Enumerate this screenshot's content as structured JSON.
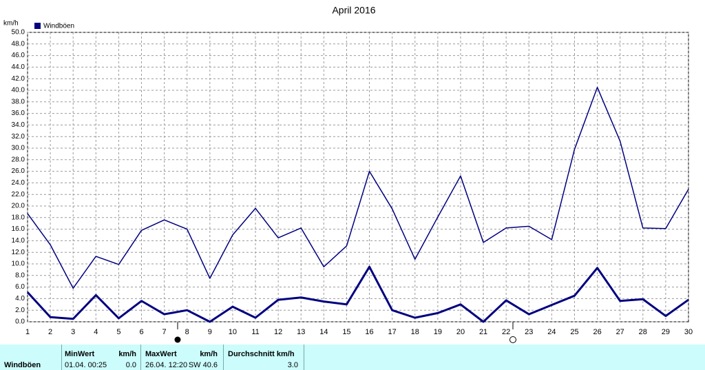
{
  "chart_data": {
    "type": "line",
    "title": "April 2016",
    "y_label": "km/h",
    "x": [
      1,
      2,
      3,
      4,
      5,
      6,
      7,
      8,
      9,
      10,
      11,
      12,
      13,
      14,
      15,
      16,
      17,
      18,
      19,
      20,
      21,
      22,
      23,
      24,
      25,
      26,
      27,
      28,
      29,
      30
    ],
    "xlim": [
      1,
      30
    ],
    "xticks": [
      1,
      2,
      3,
      4,
      5,
      6,
      7,
      8,
      9,
      10,
      11,
      12,
      13,
      14,
      15,
      16,
      17,
      18,
      19,
      20,
      21,
      22,
      23,
      24,
      25,
      26,
      27,
      28,
      29,
      30
    ],
    "ylim": [
      0,
      50
    ],
    "yticks": [
      {
        "value": 0,
        "label": "0.0"
      },
      {
        "value": 2,
        "label": "2.0"
      },
      {
        "value": 4,
        "label": "4.0"
      },
      {
        "value": 6,
        "label": "6.0"
      },
      {
        "value": 8,
        "label": "8.0"
      },
      {
        "value": 10,
        "label": "10.0"
      },
      {
        "value": 12,
        "label": "12.0"
      },
      {
        "value": 14,
        "label": "14.0"
      },
      {
        "value": 16,
        "label": "16.0"
      },
      {
        "value": 18,
        "label": "18.0"
      },
      {
        "value": 20,
        "label": "20.0"
      },
      {
        "value": 22,
        "label": "22.0"
      },
      {
        "value": 24,
        "label": "24.0"
      },
      {
        "value": 26,
        "label": "26.0"
      },
      {
        "value": 28,
        "label": "28.0"
      },
      {
        "value": 30,
        "label": "30.0"
      },
      {
        "value": 32,
        "label": "32.0"
      },
      {
        "value": 34,
        "label": "34.0"
      },
      {
        "value": 36,
        "label": "36.0"
      },
      {
        "value": 38,
        "label": "38.0"
      },
      {
        "value": 40,
        "label": "40.0"
      },
      {
        "value": 42,
        "label": "42.0"
      },
      {
        "value": 44,
        "label": "44.0"
      },
      {
        "value": 46,
        "label": "46.0"
      },
      {
        "value": 48,
        "label": "48.0"
      },
      {
        "value": 50,
        "label": "50.0"
      }
    ],
    "grid": true,
    "series": [
      {
        "name": "Windböen",
        "color": "#000080",
        "width": 1.5,
        "values": [
          18.7,
          13.3,
          5.8,
          11.3,
          9.9,
          15.8,
          17.6,
          16.0,
          7.5,
          15.0,
          19.6,
          14.5,
          16.2,
          9.5,
          13.1,
          26.0,
          19.5,
          10.8,
          18.1,
          25.2,
          13.7,
          16.2,
          16.5,
          14.2,
          29.8,
          40.5,
          31.2,
          16.2,
          16.1,
          22.9
        ]
      },
      {
        "color": "#000080",
        "width": 3,
        "values": [
          5.1,
          0.8,
          0.5,
          4.6,
          0.6,
          3.6,
          1.3,
          2.0,
          0.0,
          2.6,
          0.7,
          3.8,
          4.2,
          3.5,
          3.0,
          9.5,
          2.0,
          0.7,
          1.5,
          3.0,
          0.0,
          3.7,
          1.3,
          2.9,
          4.5,
          9.3,
          3.6,
          3.9,
          1.0,
          3.8
        ]
      }
    ]
  },
  "stats": {
    "label": "Windböen",
    "min": {
      "header": "MinWert",
      "unit": "km/h",
      "time": "01.04.  00:25",
      "value": "0.0"
    },
    "max": {
      "header": "MaxWert",
      "unit": "km/h",
      "time": "26.04.  12:20",
      "value": "SW 40.6"
    },
    "avg": {
      "header": "Durchschnitt km/h",
      "value": "3.0"
    }
  }
}
